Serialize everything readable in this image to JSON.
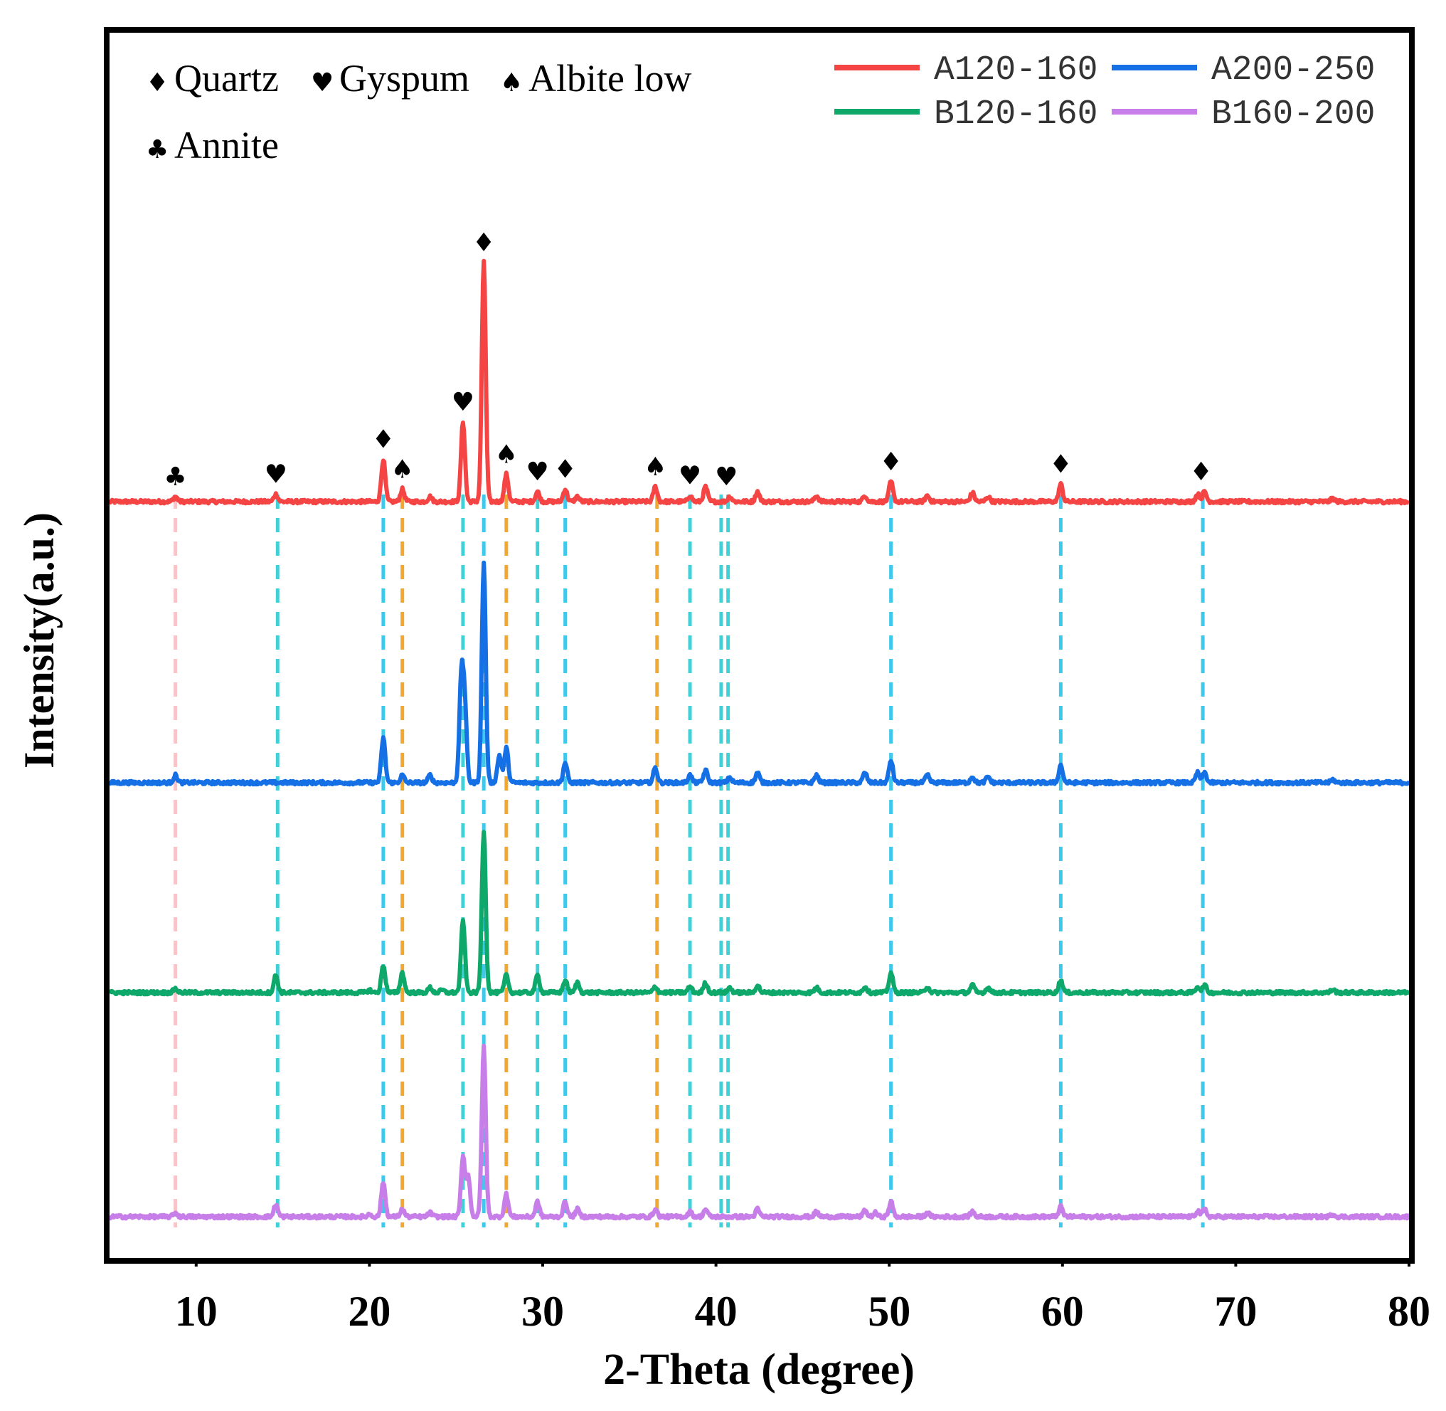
{
  "chart_data": {
    "type": "line",
    "xlabel": "2-Theta (degree)",
    "ylabel": "Intensity(a.u.)",
    "xlim": [
      5,
      80
    ],
    "xticks": [
      10,
      20,
      30,
      40,
      50,
      60,
      70,
      80
    ],
    "y_ticks_shown": false,
    "grid": false,
    "legend_position": "top-right",
    "phase_legend": [
      {
        "symbol": "♦",
        "name": "Quartz"
      },
      {
        "symbol": "♥",
        "name": "Gyspum"
      },
      {
        "symbol": "♠",
        "name": "Albite low"
      },
      {
        "symbol": "♣",
        "name": "Annite"
      }
    ],
    "series": [
      {
        "name": "A120-160",
        "color": "#F44444",
        "offset": 1.0,
        "peaks": [
          [
            8.8,
            0.1
          ],
          [
            14.6,
            0.15
          ],
          [
            20.8,
            0.85
          ],
          [
            21.9,
            0.25
          ],
          [
            23.5,
            0.1
          ],
          [
            25.4,
            1.6
          ],
          [
            26.6,
            4.8
          ],
          [
            27.9,
            0.55
          ],
          [
            29.7,
            0.2
          ],
          [
            31.3,
            0.25
          ],
          [
            32.0,
            0.1
          ],
          [
            36.5,
            0.3
          ],
          [
            38.5,
            0.12
          ],
          [
            39.4,
            0.3
          ],
          [
            40.8,
            0.1
          ],
          [
            42.4,
            0.2
          ],
          [
            45.8,
            0.12
          ],
          [
            48.6,
            0.12
          ],
          [
            50.1,
            0.4
          ],
          [
            52.2,
            0.12
          ],
          [
            54.8,
            0.18
          ],
          [
            55.7,
            0.1
          ],
          [
            59.9,
            0.35
          ],
          [
            67.8,
            0.15
          ],
          [
            68.2,
            0.2
          ],
          [
            75.6,
            0.06
          ]
        ]
      },
      {
        "name": "A200-250",
        "color": "#1570E6",
        "offset": 0.7,
        "peaks": [
          [
            8.8,
            0.15
          ],
          [
            20.8,
            0.9
          ],
          [
            21.9,
            0.15
          ],
          [
            23.5,
            0.15
          ],
          [
            25.3,
            2.0
          ],
          [
            25.5,
            1.5
          ],
          [
            26.6,
            4.4
          ],
          [
            27.5,
            0.55
          ],
          [
            27.9,
            0.7
          ],
          [
            31.3,
            0.4
          ],
          [
            36.5,
            0.3
          ],
          [
            38.5,
            0.15
          ],
          [
            39.4,
            0.25
          ],
          [
            40.8,
            0.1
          ],
          [
            42.4,
            0.2
          ],
          [
            45.8,
            0.15
          ],
          [
            48.6,
            0.2
          ],
          [
            50.1,
            0.45
          ],
          [
            52.2,
            0.15
          ],
          [
            54.8,
            0.12
          ],
          [
            55.7,
            0.12
          ],
          [
            59.9,
            0.35
          ],
          [
            67.8,
            0.2
          ],
          [
            68.2,
            0.2
          ],
          [
            75.6,
            0.06
          ]
        ]
      },
      {
        "name": "B120-160",
        "color": "#0EA86A",
        "offset": 0.4,
        "peaks": [
          [
            8.8,
            0.08
          ],
          [
            14.6,
            0.35
          ],
          [
            20.0,
            0.05
          ],
          [
            20.8,
            0.55
          ],
          [
            21.9,
            0.4
          ],
          [
            23.5,
            0.1
          ],
          [
            24.2,
            0.05
          ],
          [
            25.4,
            1.45
          ],
          [
            26.6,
            3.25
          ],
          [
            27.9,
            0.35
          ],
          [
            29.7,
            0.35
          ],
          [
            31.3,
            0.25
          ],
          [
            32.0,
            0.2
          ],
          [
            36.5,
            0.12
          ],
          [
            38.5,
            0.12
          ],
          [
            39.4,
            0.2
          ],
          [
            40.8,
            0.1
          ],
          [
            42.4,
            0.15
          ],
          [
            45.8,
            0.1
          ],
          [
            48.6,
            0.12
          ],
          [
            50.1,
            0.4
          ],
          [
            52.2,
            0.12
          ],
          [
            54.8,
            0.15
          ],
          [
            55.7,
            0.1
          ],
          [
            59.9,
            0.25
          ],
          [
            67.8,
            0.12
          ],
          [
            68.2,
            0.15
          ],
          [
            75.6,
            0.06
          ]
        ]
      },
      {
        "name": "B160-200",
        "color": "#C77EE8",
        "offset": 0.1,
        "peaks": [
          [
            8.8,
            0.08
          ],
          [
            14.6,
            0.25
          ],
          [
            20.0,
            0.05
          ],
          [
            20.8,
            0.7
          ],
          [
            21.9,
            0.15
          ],
          [
            23.5,
            0.08
          ],
          [
            25.4,
            1.2
          ],
          [
            25.7,
            0.8
          ],
          [
            26.6,
            3.4
          ],
          [
            27.9,
            0.45
          ],
          [
            29.7,
            0.3
          ],
          [
            31.3,
            0.3
          ],
          [
            32.0,
            0.15
          ],
          [
            36.5,
            0.15
          ],
          [
            38.5,
            0.1
          ],
          [
            39.4,
            0.15
          ],
          [
            42.4,
            0.15
          ],
          [
            45.8,
            0.1
          ],
          [
            48.6,
            0.12
          ],
          [
            49.2,
            0.08
          ],
          [
            50.1,
            0.3
          ],
          [
            52.2,
            0.08
          ],
          [
            54.8,
            0.1
          ],
          [
            59.9,
            0.2
          ],
          [
            67.8,
            0.12
          ],
          [
            68.2,
            0.15
          ],
          [
            75.6,
            0.05
          ]
        ]
      }
    ],
    "reference_lines": [
      {
        "x": 8.8,
        "phase": "Annite",
        "color": "#F7C4C8"
      },
      {
        "x": 14.7,
        "phase": "Gyspum",
        "color": "#40D0D8"
      },
      {
        "x": 20.8,
        "phase": "Quartz",
        "color": "#3EC8EC"
      },
      {
        "x": 21.9,
        "phase": "Albite low",
        "color": "#F0A830"
      },
      {
        "x": 25.4,
        "phase": "Gyspum",
        "color": "#40D0D8"
      },
      {
        "x": 26.6,
        "phase": "Quartz",
        "color": "#3EC8EC"
      },
      {
        "x": 27.9,
        "phase": "Albite low",
        "color": "#F0A830"
      },
      {
        "x": 29.7,
        "phase": "Gyspum",
        "color": "#40D0D8"
      },
      {
        "x": 31.3,
        "phase": "Quartz",
        "color": "#3EC8EC"
      },
      {
        "x": 36.6,
        "phase": "Albite low",
        "color": "#F0A830"
      },
      {
        "x": 38.5,
        "phase": "Gyspum",
        "color": "#40D0D8"
      },
      {
        "x": 40.3,
        "phase": "Gyspum",
        "color": "#40D0D8"
      },
      {
        "x": 40.7,
        "phase": "Gyspum",
        "color": "#40D0D8"
      },
      {
        "x": 50.1,
        "phase": "Quartz",
        "color": "#3EC8EC"
      },
      {
        "x": 59.9,
        "phase": "Quartz",
        "color": "#3EC8EC"
      },
      {
        "x": 68.1,
        "phase": "Quartz",
        "color": "#3EC8EC"
      }
    ],
    "peak_markers": [
      {
        "x": 8.8,
        "symbol": "♣",
        "intensity": 0.1
      },
      {
        "x": 14.6,
        "symbol": "♥",
        "intensity": 0.15
      },
      {
        "x": 20.8,
        "symbol": "♦",
        "intensity": 0.85
      },
      {
        "x": 21.9,
        "symbol": "♠",
        "intensity": 0.25
      },
      {
        "x": 25.4,
        "symbol": "♥",
        "intensity": 1.6
      },
      {
        "x": 26.6,
        "symbol": "♦",
        "intensity": 4.8
      },
      {
        "x": 27.9,
        "symbol": "♠",
        "intensity": 0.55
      },
      {
        "x": 29.7,
        "symbol": "♥",
        "intensity": 0.2
      },
      {
        "x": 31.3,
        "symbol": "♦",
        "intensity": 0.25
      },
      {
        "x": 36.5,
        "symbol": "♠",
        "intensity": 0.3
      },
      {
        "x": 38.5,
        "symbol": "♥",
        "intensity": 0.12
      },
      {
        "x": 40.6,
        "symbol": "♥",
        "intensity": 0.1
      },
      {
        "x": 50.1,
        "symbol": "♦",
        "intensity": 0.4
      },
      {
        "x": 59.9,
        "symbol": "♦",
        "intensity": 0.35
      },
      {
        "x": 68.0,
        "symbol": "♦",
        "intensity": 0.2
      }
    ]
  }
}
